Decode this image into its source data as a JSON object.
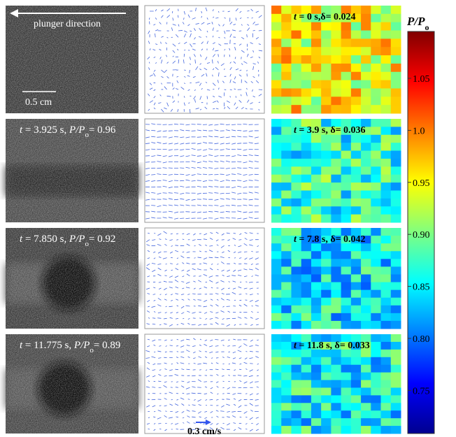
{
  "top_annotation": "plunger direction",
  "length_scale": "0.5 cm",
  "image_labels": [
    [
      "t",
      " = 3.925 s, ",
      "P/P",
      "o",
      "= 0.96"
    ],
    [
      "t",
      " = 7.850 s, ",
      "P/P",
      "o",
      "= 0.92"
    ],
    [
      "t",
      " = 11.775 s, ",
      "P/P",
      "o",
      "= 0.89"
    ]
  ],
  "map_labels": [
    [
      "t",
      " = 0 s,δ= 0.024"
    ],
    [
      "t",
      " = 3.9 s, δ= 0.036"
    ],
    [
      "t",
      " = 7.8 s, δ= 0.042"
    ],
    [
      "t",
      " = 11.8 s, δ= 0.033"
    ]
  ],
  "velocity_scale": "0.3 cm/s",
  "colorbar": {
    "title": [
      "P/P",
      "o"
    ],
    "ticks": [
      "1.05",
      "1.0",
      "0.95",
      "0.90",
      "0.85",
      "0.80",
      "0.75"
    ]
  }
}
